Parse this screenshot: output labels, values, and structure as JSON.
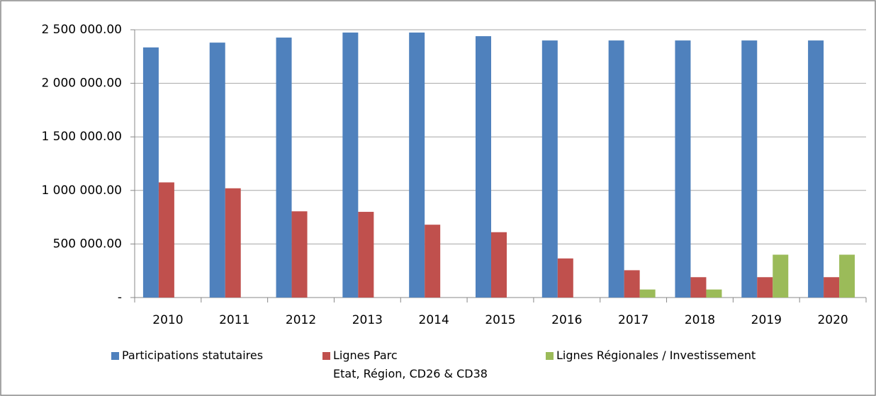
{
  "chart_data": {
    "type": "bar",
    "categories": [
      "2010",
      "2011",
      "2012",
      "2013",
      "2014",
      "2015",
      "2016",
      "2017",
      "2018",
      "2019",
      "2020"
    ],
    "series": [
      {
        "name": "Participations statutaires",
        "color": "#4f81bd",
        "values": [
          2335000,
          2380000,
          2427000,
          2474000,
          2474000,
          2440000,
          2400000,
          2400000,
          2400000,
          2400000,
          2400000
        ]
      },
      {
        "name": "Lignes Parc\nEtat, Région, CD26 & CD38",
        "color": "#c0504d",
        "values": [
          1075000,
          1020000,
          805000,
          800000,
          680000,
          610000,
          365000,
          255000,
          190000,
          190000,
          190000
        ]
      },
      {
        "name": "Lignes Régionales / Investissement",
        "color": "#9bbb59",
        "values": [
          0,
          0,
          0,
          0,
          0,
          0,
          0,
          75000,
          75000,
          400000,
          400000
        ]
      }
    ],
    "ylim": [
      0,
      2500000
    ],
    "yticks": [
      {
        "value": 0,
        "label": "-"
      },
      {
        "value": 500000,
        "label": "500 000.00"
      },
      {
        "value": 1000000,
        "label": "1 000 000.00"
      },
      {
        "value": 1500000,
        "label": "1 500 000.00"
      },
      {
        "value": 2000000,
        "label": "2 000 000.00"
      },
      {
        "value": 2500000,
        "label": "2 500 000.00"
      }
    ],
    "grid": true
  }
}
